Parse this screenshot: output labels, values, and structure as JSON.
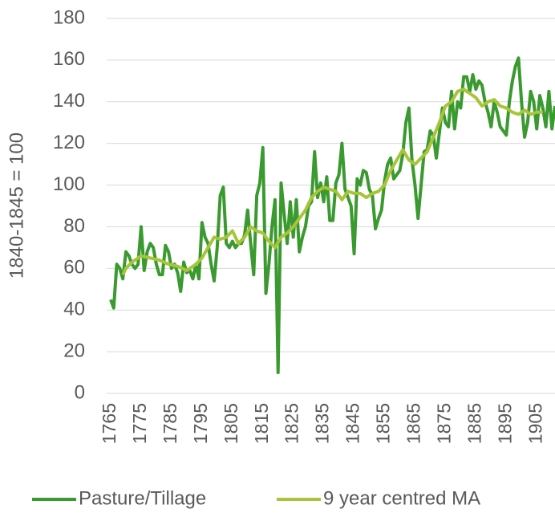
{
  "chart_data": {
    "type": "line",
    "ylabel": "1840-1845 = 100",
    "x": [
      1765,
      1766,
      1767,
      1768,
      1769,
      1770,
      1771,
      1772,
      1773,
      1774,
      1775,
      1776,
      1777,
      1778,
      1779,
      1780,
      1781,
      1782,
      1783,
      1784,
      1785,
      1786,
      1787,
      1788,
      1789,
      1790,
      1791,
      1792,
      1793,
      1794,
      1795,
      1796,
      1797,
      1798,
      1799,
      1800,
      1801,
      1802,
      1803,
      1804,
      1805,
      1806,
      1807,
      1808,
      1809,
      1810,
      1811,
      1812,
      1813,
      1814,
      1815,
      1816,
      1817,
      1818,
      1819,
      1820,
      1821,
      1822,
      1823,
      1824,
      1825,
      1826,
      1827,
      1828,
      1829,
      1830,
      1831,
      1832,
      1833,
      1834,
      1835,
      1836,
      1837,
      1838,
      1839,
      1840,
      1841,
      1842,
      1843,
      1844,
      1845,
      1846,
      1847,
      1848,
      1849,
      1850,
      1851,
      1852,
      1853,
      1854,
      1855,
      1856,
      1857,
      1858,
      1859,
      1860,
      1861,
      1862,
      1863,
      1864,
      1865,
      1866,
      1867,
      1868,
      1869,
      1870,
      1871,
      1872,
      1873,
      1874,
      1875,
      1876,
      1877,
      1878,
      1879,
      1880,
      1881,
      1882,
      1883,
      1884,
      1885,
      1886,
      1887,
      1888,
      1889,
      1890,
      1891,
      1892,
      1893,
      1894,
      1895,
      1896,
      1897,
      1898,
      1899,
      1900,
      1901,
      1902,
      1903,
      1904,
      1905,
      1906,
      1907,
      1908,
      1909,
      1910,
      1911
    ],
    "series": [
      {
        "name": "Pasture/Tillage",
        "color": "#3a9a2f",
        "values": [
          45,
          41,
          62,
          60,
          55,
          68,
          66,
          62,
          60,
          62,
          80,
          59,
          68,
          72,
          70,
          62,
          57,
          57,
          71,
          68,
          60,
          62,
          58,
          49,
          63,
          58,
          59,
          55,
          62,
          55,
          82,
          75,
          72,
          62,
          54,
          70,
          95,
          99,
          72,
          70,
          73,
          70,
          72,
          72,
          76,
          88,
          72,
          57,
          95,
          101,
          118,
          48,
          62,
          80,
          93,
          10,
          101,
          86,
          72,
          92,
          75,
          93,
          68,
          75,
          80,
          90,
          92,
          116,
          94,
          101,
          92,
          104,
          83,
          83,
          101,
          105,
          120,
          98,
          94,
          90,
          67,
          103,
          100,
          107,
          106,
          98,
          95,
          79,
          84,
          88,
          102,
          110,
          113,
          103,
          105,
          107,
          115,
          130,
          137,
          112,
          100,
          84,
          100,
          116,
          117,
          126,
          124,
          113,
          125,
          137,
          130,
          128,
          145,
          127,
          140,
          137,
          152,
          152,
          145,
          153,
          146,
          150,
          148,
          140,
          135,
          128,
          140,
          135,
          128,
          126,
          124,
          140,
          150,
          157,
          161,
          140,
          123,
          130,
          145,
          140,
          127,
          143,
          137,
          128,
          145,
          127,
          138
        ]
      },
      {
        "name": "9 year centred MA",
        "color": "#a8c43a",
        "values": [
          null,
          null,
          null,
          null,
          57,
          60,
          61.5,
          63,
          64,
          65,
          66,
          65.7,
          65.3,
          65,
          64.7,
          64.3,
          64,
          63.3,
          62.7,
          62,
          61.7,
          61.3,
          61,
          60.3,
          59.7,
          59,
          60,
          61,
          62,
          63.5,
          65,
          67.5,
          70,
          72.5,
          75,
          74.5,
          74,
          74.5,
          75,
          76.5,
          78,
          75,
          72,
          73.5,
          75,
          77.5,
          80,
          79,
          78,
          77.5,
          77,
          75,
          73,
          71.5,
          70,
          72.5,
          75,
          76,
          77,
          78.5,
          80,
          82,
          84,
          86,
          88,
          91,
          94,
          95.5,
          97,
          98,
          99,
          98.5,
          98,
          97.5,
          97,
          95,
          93,
          95,
          97,
          96.5,
          96,
          96,
          96,
          95,
          94,
          95,
          96,
          96.5,
          97,
          98.5,
          100,
          103.5,
          107,
          109.5,
          112,
          114.5,
          117,
          114.5,
          112,
          111,
          110,
          111.5,
          113,
          114.5,
          116,
          119.5,
          123,
          126.5,
          130,
          134,
          138,
          139,
          140,
          142.5,
          145,
          145.5,
          146,
          145,
          144,
          143,
          142,
          140,
          138,
          139,
          140,
          140.5,
          141,
          139.5,
          138,
          137.5,
          137,
          136,
          135,
          134.5,
          134,
          135,
          136,
          135,
          134,
          134.5,
          135,
          135,
          135,
          null,
          null,
          null,
          null
        ]
      }
    ],
    "xlim": [
      1765,
      1911
    ],
    "xticks": [
      1765,
      1775,
      1785,
      1795,
      1805,
      1815,
      1825,
      1835,
      1845,
      1855,
      1865,
      1875,
      1885,
      1895,
      1905
    ],
    "ylim": [
      0,
      180
    ],
    "yticks": [
      0,
      20,
      40,
      60,
      80,
      100,
      120,
      140,
      160,
      180
    ],
    "grid": true,
    "legend": "bottom"
  }
}
